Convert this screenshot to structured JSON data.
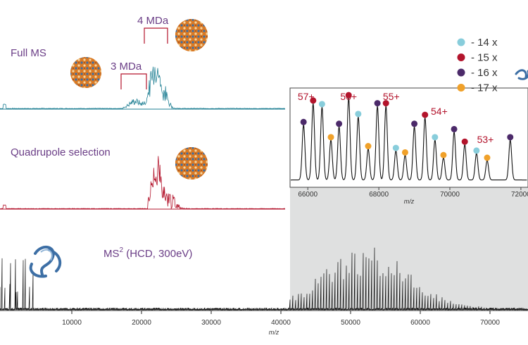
{
  "chart_data": [
    {
      "type": "line",
      "label": "Full MS",
      "color": "#1f7f93",
      "annotations": [
        {
          "text": "3 MDa",
          "x_range": [
            3500,
            5200
          ]
        },
        {
          "text": "4 MDa",
          "x_range": [
            5300,
            7800
          ]
        }
      ]
    },
    {
      "type": "line",
      "label": "Quadrupole selection",
      "color": "#b3142c"
    },
    {
      "type": "line",
      "label_main": "MS",
      "label_sup": "2",
      "label_rest": " (HCD, 300eV)",
      "color": "#111111",
      "xlabel": "m/z",
      "xlim": [
        0,
        75000
      ],
      "xticks": [
        10000,
        20000,
        30000,
        40000,
        50000,
        60000,
        70000
      ]
    },
    {
      "type": "line",
      "name": "inset",
      "xlabel": "m/z",
      "xlim": [
        65500,
        72200
      ],
      "xticks": [
        66000,
        68000,
        70000,
        72000
      ],
      "charge_labels": [
        {
          "text": "57+",
          "x": 65950
        },
        {
          "text": "56+",
          "x": 67150
        },
        {
          "text": "55+",
          "x": 68350
        },
        {
          "text": "54+",
          "x": 69700
        },
        {
          "text": "53+",
          "x": 71000
        }
      ],
      "peaks": [
        {
          "x": 65880,
          "y": 0.62,
          "series": "16"
        },
        {
          "x": 66150,
          "y": 0.86,
          "series": "15"
        },
        {
          "x": 66400,
          "y": 0.82,
          "series": "14"
        },
        {
          "x": 66650,
          "y": 0.45,
          "series": "17"
        },
        {
          "x": 66880,
          "y": 0.6,
          "series": "16"
        },
        {
          "x": 67150,
          "y": 0.92,
          "series": "15"
        },
        {
          "x": 67420,
          "y": 0.71,
          "series": "14"
        },
        {
          "x": 67700,
          "y": 0.35,
          "series": "17"
        },
        {
          "x": 67960,
          "y": 0.83,
          "series": "16"
        },
        {
          "x": 68200,
          "y": 0.83,
          "series": "15"
        },
        {
          "x": 68480,
          "y": 0.33,
          "series": "14"
        },
        {
          "x": 68740,
          "y": 0.28,
          "series": "17"
        },
        {
          "x": 69000,
          "y": 0.6,
          "series": "16"
        },
        {
          "x": 69300,
          "y": 0.7,
          "series": "15"
        },
        {
          "x": 69580,
          "y": 0.45,
          "series": "14"
        },
        {
          "x": 69820,
          "y": 0.25,
          "series": "17"
        },
        {
          "x": 70120,
          "y": 0.54,
          "series": "16"
        },
        {
          "x": 70420,
          "y": 0.4,
          "series": "15"
        },
        {
          "x": 70750,
          "y": 0.3,
          "series": "14"
        },
        {
          "x": 71050,
          "y": 0.22,
          "series": "17"
        },
        {
          "x": 71700,
          "y": 0.45,
          "series": "16"
        }
      ]
    }
  ],
  "legend": {
    "placement": "top-right",
    "items": [
      {
        "key": "14",
        "label": "- 14 x",
        "color": "#88cddb"
      },
      {
        "key": "15",
        "label": "- 15 x",
        "color": "#b3142c"
      },
      {
        "key": "16",
        "label": "- 16 x",
        "color": "#4c2a6a"
      },
      {
        "key": "17",
        "label": "- 17 x",
        "color": "#f0a12a"
      }
    ]
  }
}
